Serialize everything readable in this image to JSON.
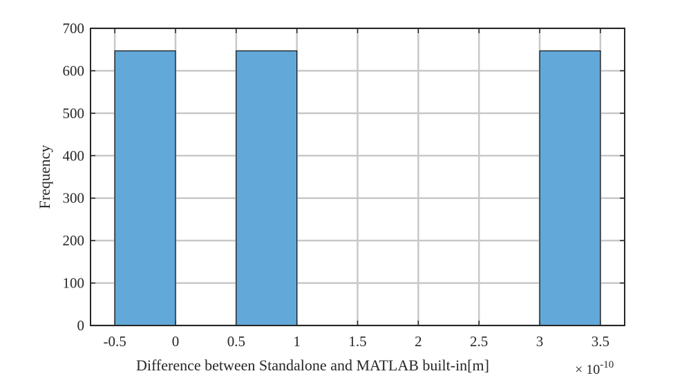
{
  "chart_data": {
    "type": "bar",
    "title": "",
    "xlabel": "Difference between Standalone and MATLAB built-in[m]",
    "x_exponent": {
      "base": "× 10",
      "power": "-10"
    },
    "ylabel": "Frequency",
    "xlim": [
      -0.7,
      3.7
    ],
    "ylim": [
      0,
      700
    ],
    "xticks": [
      -0.5,
      0,
      0.5,
      1,
      1.5,
      2,
      2.5,
      3,
      3.5
    ],
    "xtick_labels": [
      "-0.5",
      "0",
      "0.5",
      "1",
      "1.5",
      "2",
      "2.5",
      "3",
      "3.5"
    ],
    "yticks": [
      0,
      100,
      200,
      300,
      400,
      500,
      600,
      700
    ],
    "ytick_labels": [
      "0",
      "100",
      "200",
      "300",
      "400",
      "500",
      "600",
      "700"
    ],
    "bins": [
      {
        "x_start": -0.5,
        "x_end": 0.0,
        "value": 647
      },
      {
        "x_start": 0.5,
        "x_end": 1.0,
        "value": 647
      },
      {
        "x_start": 3.0,
        "x_end": 3.5,
        "value": 647
      }
    ],
    "grid": true,
    "colors": {
      "bar": "#62a8d8",
      "bar_edge": "#111111",
      "grid": "#c8c8c8",
      "axis": "#262626"
    }
  }
}
